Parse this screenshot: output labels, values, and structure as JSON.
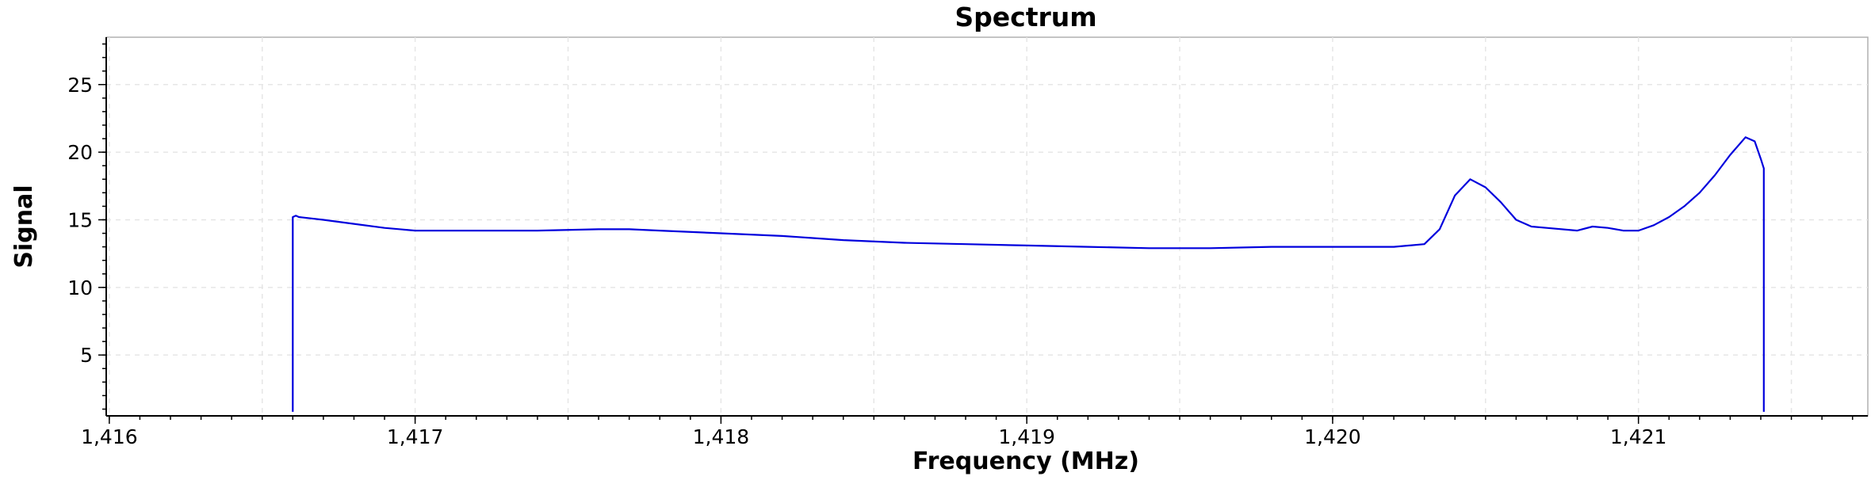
{
  "chart_data": {
    "type": "line",
    "title": "Spectrum",
    "xlabel": "Frequency (MHz)",
    "ylabel": "Signal",
    "xlim": [
      1415.99,
      1421.75
    ],
    "ylim": [
      0.5,
      28.5
    ],
    "grid": true,
    "x_ticks": [
      1416,
      1417,
      1418,
      1419,
      1420,
      1421
    ],
    "x_tick_labels": [
      "1,416",
      "1,417",
      "1,418",
      "1,419",
      "1,420",
      "1,421"
    ],
    "y_ticks": [
      5,
      10,
      15,
      20,
      25
    ],
    "y_tick_labels": [
      "5",
      "10",
      "15",
      "20",
      "25"
    ],
    "series": [
      {
        "color": "#0000dd",
        "x": [
          1416.6,
          1416.6,
          1416.61,
          1416.62,
          1416.7,
          1416.8,
          1416.9,
          1417.0,
          1417.2,
          1417.4,
          1417.6,
          1417.7,
          1417.8,
          1418.0,
          1418.2,
          1418.4,
          1418.6,
          1418.8,
          1419.0,
          1419.2,
          1419.4,
          1419.5,
          1419.6,
          1419.8,
          1420.0,
          1420.2,
          1420.3,
          1420.35,
          1420.4,
          1420.45,
          1420.5,
          1420.55,
          1420.6,
          1420.65,
          1420.7,
          1420.8,
          1420.85,
          1420.9,
          1420.95,
          1421.0,
          1421.05,
          1421.1,
          1421.15,
          1421.2,
          1421.25,
          1421.3,
          1421.35,
          1421.38,
          1421.4,
          1421.41,
          1421.41
        ],
        "values": [
          0.8,
          15.2,
          15.3,
          15.2,
          15.0,
          14.7,
          14.4,
          14.2,
          14.2,
          14.2,
          14.3,
          14.3,
          14.2,
          14.0,
          13.8,
          13.5,
          13.3,
          13.2,
          13.1,
          13.0,
          12.9,
          12.9,
          12.9,
          13.0,
          13.0,
          13.0,
          13.2,
          14.3,
          16.8,
          18.0,
          17.4,
          16.3,
          15.0,
          14.5,
          14.4,
          14.2,
          14.5,
          14.4,
          14.2,
          14.2,
          14.6,
          15.2,
          16.0,
          17.0,
          18.3,
          19.8,
          21.1,
          20.8,
          19.5,
          18.8,
          0.8
        ]
      }
    ]
  }
}
